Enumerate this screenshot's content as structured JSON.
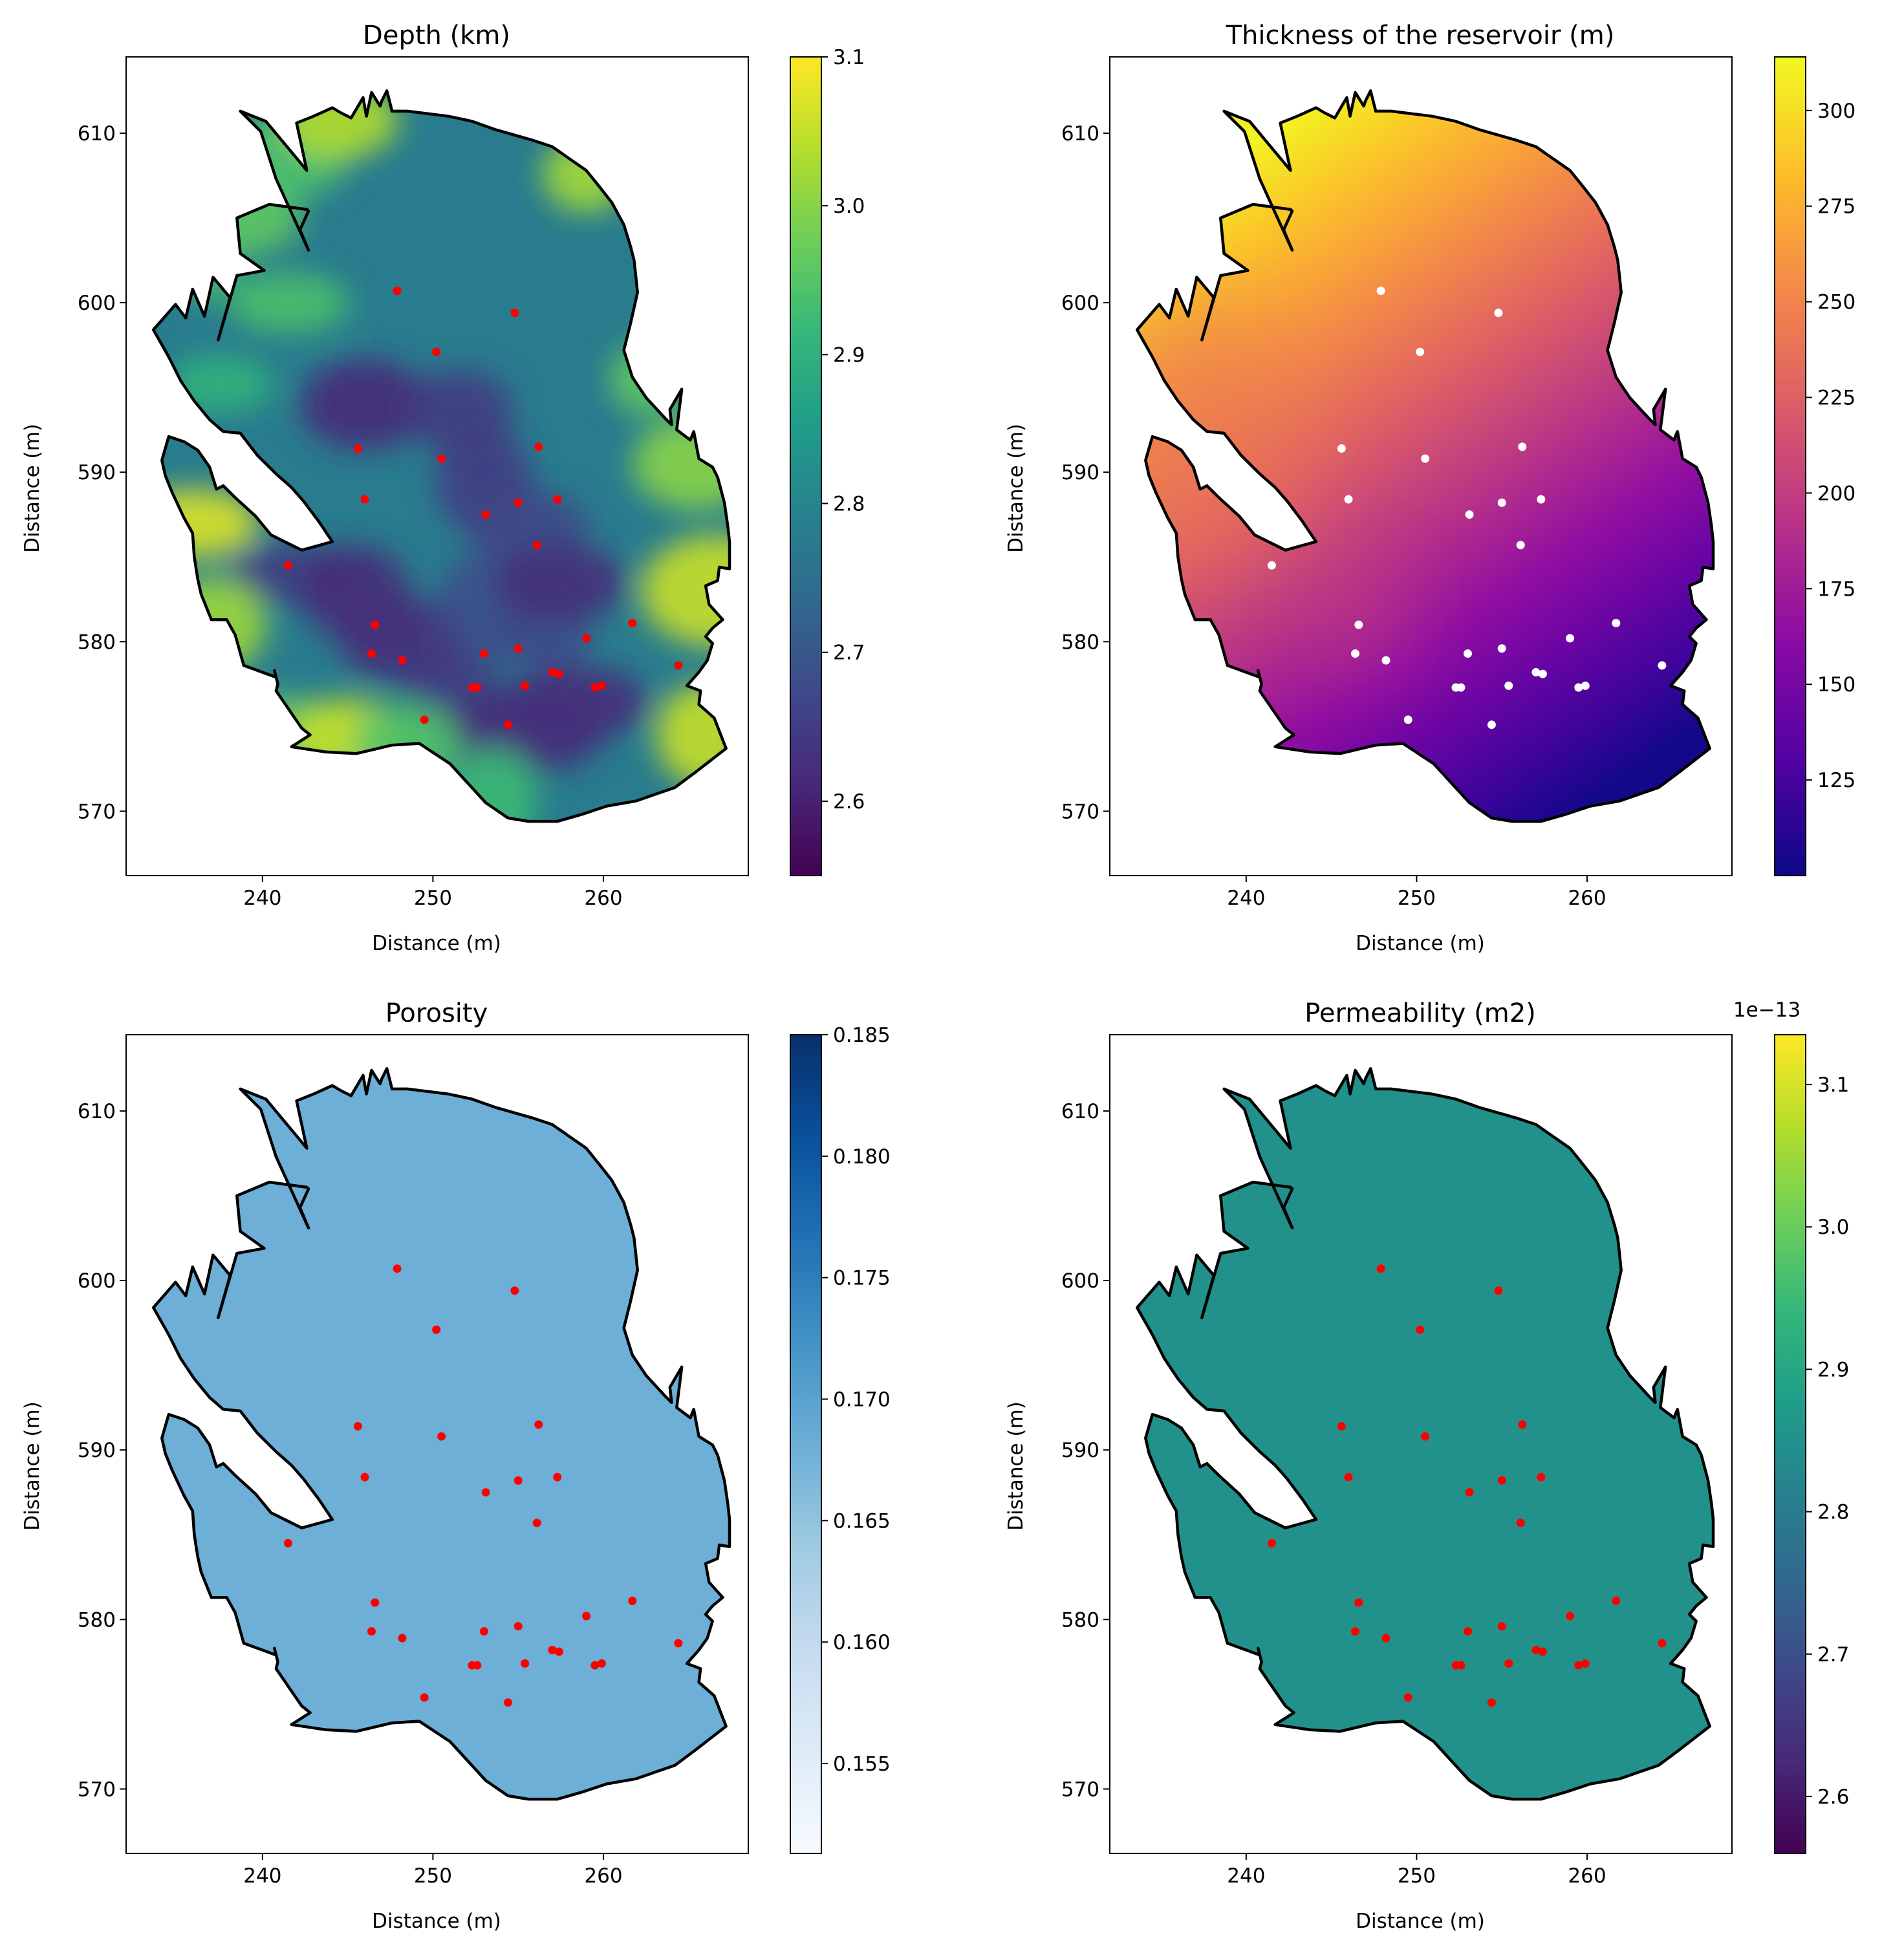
{
  "chart_data": [
    {
      "type": "heatmap",
      "title": "Depth (km)",
      "xlabel": "Distance (m)",
      "ylabel": "Distance (m)",
      "xlim": [
        232,
        268.5
      ],
      "ylim": [
        566.2,
        614.5
      ],
      "xticks": [
        240,
        250,
        260
      ],
      "yticks": [
        570,
        580,
        590,
        600,
        610
      ],
      "grid": false,
      "colormap": "viridis",
      "colorbar": {
        "min": 2.55,
        "max": 3.1,
        "ticks": [
          "2.6",
          "2.7",
          "2.8",
          "2.9",
          "3.0",
          "3.1"
        ],
        "tick_values": [
          2.6,
          2.7,
          2.8,
          2.9,
          3.0,
          3.1
        ],
        "offset_label": ""
      },
      "field": {
        "style": "patchy",
        "base_value": 2.78,
        "range": [
          2.57,
          3.1
        ]
      },
      "marker_color": "#ff0000"
    },
    {
      "type": "heatmap",
      "title": "Thickness of the reservoir (m)",
      "xlabel": "Distance (m)",
      "ylabel": "Distance (m)",
      "xlim": [
        232,
        268.5
      ],
      "ylim": [
        566.2,
        614.5
      ],
      "xticks": [
        240,
        250,
        260
      ],
      "yticks": [
        570,
        580,
        590,
        600,
        610
      ],
      "grid": false,
      "colormap": "plasma",
      "colorbar": {
        "min": 100,
        "max": 314,
        "ticks": [
          "125",
          "150",
          "175",
          "200",
          "225",
          "250",
          "275",
          "300"
        ],
        "tick_values": [
          125,
          150,
          175,
          200,
          225,
          250,
          275,
          300
        ],
        "offset_label": ""
      },
      "field": {
        "style": "gradient",
        "high_value": 310,
        "low_value": 102,
        "high_point": [
          237,
          607
        ],
        "low_point": [
          261,
          571
        ]
      },
      "marker_color": "#ffffff"
    },
    {
      "type": "heatmap",
      "title": "Porosity",
      "xlabel": "Distance (m)",
      "ylabel": "Distance (m)",
      "xlim": [
        232,
        268.5
      ],
      "ylim": [
        566.2,
        614.5
      ],
      "xticks": [
        240,
        250,
        260
      ],
      "yticks": [
        570,
        580,
        590,
        600,
        610
      ],
      "grid": false,
      "colormap": "blues",
      "colorbar": {
        "min": 0.1513,
        "max": 0.185,
        "ticks": [
          "0.155",
          "0.160",
          "0.165",
          "0.170",
          "0.175",
          "0.180",
          "0.185"
        ],
        "tick_values": [
          0.155,
          0.16,
          0.165,
          0.17,
          0.175,
          0.18,
          0.185
        ],
        "offset_label": ""
      },
      "field": {
        "style": "uniform",
        "value": 0.168
      },
      "marker_color": "#ff0000"
    },
    {
      "type": "heatmap",
      "title": "Permeability (m2)",
      "xlabel": "Distance (m)",
      "ylabel": "Distance (m)",
      "xlim": [
        232,
        268.5
      ],
      "ylim": [
        566.2,
        614.5
      ],
      "xticks": [
        240,
        250,
        260
      ],
      "yticks": [
        570,
        580,
        590,
        600,
        610
      ],
      "grid": false,
      "colormap": "viridis",
      "colorbar": {
        "min": 2.56,
        "max": 3.135,
        "ticks": [
          "2.6",
          "2.7",
          "2.8",
          "2.9",
          "3.0",
          "3.1"
        ],
        "tick_values": [
          2.6,
          2.7,
          2.8,
          2.9,
          3.0,
          3.1
        ],
        "offset_label": "1e−13"
      },
      "field": {
        "style": "uniform",
        "value": 2.85
      },
      "marker_color": "#ff0000"
    }
  ],
  "wells": [
    [
      247.9,
      600.7
    ],
    [
      254.8,
      599.4
    ],
    [
      250.2,
      597.1
    ],
    [
      245.6,
      591.4
    ],
    [
      256.2,
      591.5
    ],
    [
      250.5,
      590.8
    ],
    [
      246.0,
      588.4
    ],
    [
      255.0,
      588.2
    ],
    [
      257.3,
      588.4
    ],
    [
      253.1,
      587.5
    ],
    [
      256.1,
      585.7
    ],
    [
      241.5,
      584.5
    ],
    [
      246.6,
      581.0
    ],
    [
      261.7,
      581.1
    ],
    [
      259.0,
      580.2
    ],
    [
      246.4,
      579.3
    ],
    [
      248.2,
      578.9
    ],
    [
      253.0,
      579.3
    ],
    [
      255.0,
      579.6
    ],
    [
      264.4,
      578.6
    ],
    [
      257.0,
      578.2
    ],
    [
      257.4,
      578.1
    ],
    [
      252.3,
      577.3
    ],
    [
      252.6,
      577.3
    ],
    [
      255.4,
      577.4
    ],
    [
      259.5,
      577.3
    ],
    [
      259.9,
      577.4
    ],
    [
      249.5,
      575.4
    ],
    [
      254.4,
      575.1
    ]
  ],
  "reservoir_outline": [
    [
      233.6,
      598.4
    ],
    [
      234.9,
      599.9
    ],
    [
      235.5,
      599.1
    ],
    [
      235.9,
      600.8
    ],
    [
      236.6,
      599.2
    ],
    [
      237.1,
      601.5
    ],
    [
      238.1,
      600.3
    ],
    [
      237.4,
      597.8
    ],
    [
      238.5,
      601.6
    ],
    [
      240.1,
      601.9
    ],
    [
      238.7,
      602.9
    ],
    [
      238.5,
      605.0
    ],
    [
      240.4,
      605.8
    ],
    [
      242.6,
      605.5
    ],
    [
      242.7,
      605.4
    ],
    [
      242.2,
      604.3
    ],
    [
      242.7,
      603.1
    ],
    [
      240.8,
      607.3
    ],
    [
      239.9,
      610.1
    ],
    [
      238.7,
      611.3
    ],
    [
      240.2,
      610.7
    ],
    [
      242.6,
      607.8
    ],
    [
      242.0,
      610.6
    ],
    [
      243.0,
      611.0
    ],
    [
      244.1,
      611.5
    ],
    [
      244.6,
      611.2
    ],
    [
      245.2,
      610.9
    ],
    [
      245.9,
      612.1
    ],
    [
      246.1,
      611.0
    ],
    [
      246.4,
      612.4
    ],
    [
      246.9,
      611.6
    ],
    [
      247.0,
      611.9
    ],
    [
      247.3,
      612.5
    ],
    [
      247.6,
      611.3
    ],
    [
      248.5,
      611.3
    ],
    [
      249.3,
      611.2
    ],
    [
      250.9,
      611.0
    ],
    [
      252.3,
      610.7
    ],
    [
      253.7,
      610.2
    ],
    [
      255.8,
      609.6
    ],
    [
      257.0,
      609.2
    ],
    [
      258.0,
      608.5
    ],
    [
      259.0,
      607.8
    ],
    [
      259.8,
      606.8
    ],
    [
      260.5,
      605.9
    ],
    [
      261.2,
      604.6
    ],
    [
      261.6,
      603.3
    ],
    [
      261.8,
      602.5
    ],
    [
      261.9,
      601.6
    ],
    [
      262.0,
      600.6
    ],
    [
      261.6,
      598.8
    ],
    [
      261.2,
      597.2
    ],
    [
      261.7,
      595.6
    ],
    [
      262.5,
      594.4
    ],
    [
      263.6,
      593.2
    ],
    [
      264.0,
      592.8
    ],
    [
      263.9,
      593.7
    ],
    [
      264.6,
      594.9
    ],
    [
      264.3,
      592.5
    ],
    [
      265.1,
      591.9
    ],
    [
      265.3,
      592.4
    ],
    [
      265.6,
      590.8
    ],
    [
      266.4,
      590.3
    ],
    [
      266.7,
      589.7
    ],
    [
      267.1,
      588.2
    ],
    [
      267.3,
      586.8
    ],
    [
      267.4,
      585.9
    ],
    [
      267.4,
      584.3
    ],
    [
      266.8,
      584.4
    ],
    [
      266.7,
      583.6
    ],
    [
      266.0,
      583.3
    ],
    [
      266.2,
      582.2
    ],
    [
      267.0,
      581.3
    ],
    [
      266.4,
      580.8
    ],
    [
      266.0,
      580.3
    ],
    [
      266.4,
      579.9
    ],
    [
      266.1,
      578.9
    ],
    [
      265.6,
      578.2
    ],
    [
      264.9,
      577.4
    ],
    [
      265.7,
      577.1
    ],
    [
      265.6,
      576.3
    ],
    [
      266.5,
      575.5
    ],
    [
      267.2,
      573.7
    ],
    [
      265.4,
      572.3
    ],
    [
      264.2,
      571.4
    ],
    [
      261.9,
      570.6
    ],
    [
      260.2,
      570.3
    ],
    [
      258.7,
      569.8
    ],
    [
      257.3,
      569.4
    ],
    [
      255.6,
      569.4
    ],
    [
      254.4,
      569.6
    ],
    [
      253.1,
      570.5
    ],
    [
      251.0,
      572.8
    ],
    [
      249.2,
      574.0
    ],
    [
      247.6,
      573.9
    ],
    [
      245.5,
      573.4
    ],
    [
      243.7,
      573.5
    ],
    [
      241.7,
      573.8
    ],
    [
      242.8,
      574.5
    ],
    [
      242.3,
      574.9
    ],
    [
      240.8,
      577.1
    ],
    [
      240.9,
      577.5
    ],
    [
      240.7,
      578.3
    ],
    [
      240.8,
      577.9
    ],
    [
      238.9,
      578.6
    ],
    [
      238.4,
      580.4
    ],
    [
      237.9,
      581.3
    ],
    [
      237.0,
      581.3
    ],
    [
      236.4,
      582.8
    ],
    [
      236.2,
      583.7
    ],
    [
      236.0,
      585.0
    ],
    [
      235.9,
      586.4
    ],
    [
      235.4,
      587.3
    ],
    [
      234.7,
      588.8
    ],
    [
      234.3,
      589.8
    ],
    [
      234.1,
      590.7
    ],
    [
      234.5,
      592.1
    ],
    [
      235.4,
      591.8
    ],
    [
      236.2,
      591.3
    ],
    [
      236.9,
      590.3
    ],
    [
      237.3,
      589.0
    ],
    [
      237.7,
      589.2
    ],
    [
      238.4,
      588.5
    ],
    [
      239.6,
      587.4
    ],
    [
      240.5,
      586.3
    ],
    [
      242.3,
      585.4
    ],
    [
      244.1,
      585.9
    ],
    [
      243.3,
      587.1
    ],
    [
      242.4,
      588.3
    ],
    [
      241.7,
      589.1
    ],
    [
      240.8,
      589.9
    ],
    [
      239.7,
      591.0
    ],
    [
      238.7,
      592.3
    ],
    [
      237.7,
      592.4
    ],
    [
      236.9,
      593.1
    ],
    [
      236.0,
      594.2
    ],
    [
      235.2,
      595.4
    ],
    [
      234.5,
      596.8
    ],
    [
      233.6,
      598.4
    ]
  ],
  "highlights": {
    "depth_low": [
      [
        246.0,
        594.0
      ],
      [
        251.5,
        593.6
      ],
      [
        253.0,
        589.5
      ],
      [
        255.5,
        586.8
      ],
      [
        242.0,
        584.0
      ],
      [
        245.5,
        582.8
      ],
      [
        248.5,
        580.0
      ],
      [
        253.0,
        582.0
      ],
      [
        256.5,
        580.6
      ],
      [
        251.5,
        576.5
      ],
      [
        258.5,
        576.4
      ],
      [
        255.2,
        574.6
      ],
      [
        257.5,
        583.5
      ]
    ],
    "depth_high": [
      [
        238.5,
        605.0
      ],
      [
        236.5,
        603.5
      ],
      [
        241.0,
        608.5
      ],
      [
        244.5,
        610.8
      ],
      [
        241.5,
        600.0
      ],
      [
        237.5,
        595.2
      ],
      [
        237.2,
        581.0
      ],
      [
        241.0,
        574.6
      ],
      [
        245.0,
        574.3
      ],
      [
        248.5,
        574.0
      ],
      [
        253.5,
        570.8
      ],
      [
        265.8,
        574.5
      ],
      [
        266.5,
        583.0
      ],
      [
        265.5,
        590.5
      ],
      [
        262.5,
        595.5
      ],
      [
        259.0,
        607.6
      ],
      [
        236.0,
        587.0
      ]
    ]
  }
}
